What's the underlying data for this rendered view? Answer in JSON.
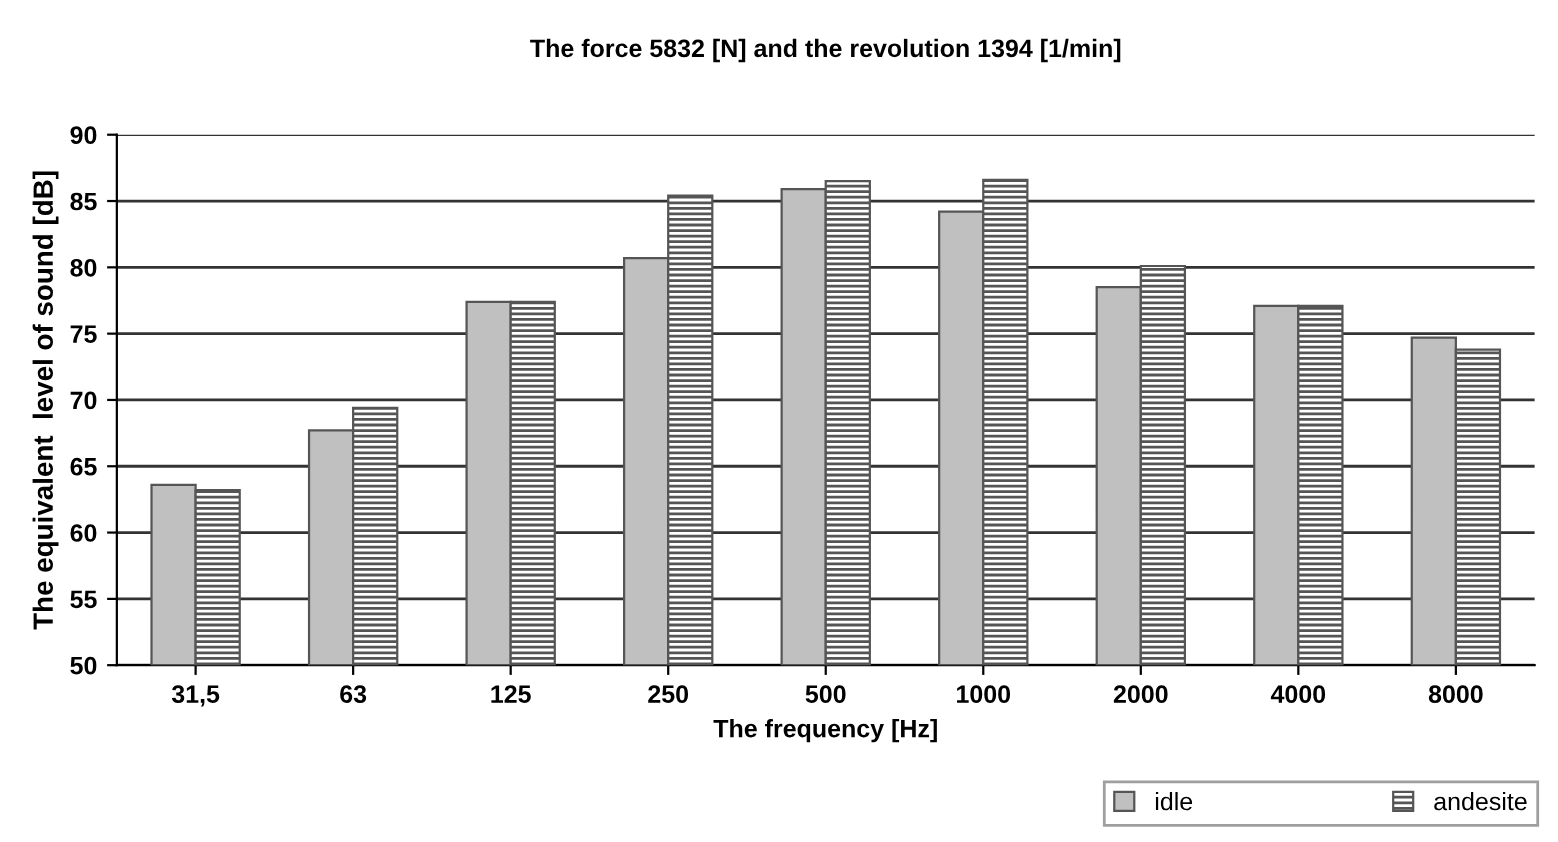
{
  "chart_data": {
    "type": "bar",
    "title": "The force 5832 [N] and the revolution 1394 [1/min]",
    "xlabel": "The frequency [Hz]",
    "ylabel": "The equivalent  level of sound [dB]",
    "categories": [
      "31,5",
      "63",
      "125",
      "250",
      "500",
      "1000",
      "2000",
      "4000",
      "8000"
    ],
    "series": [
      {
        "name": "idle",
        "color": "#c0c0c0",
        "values": [
          63.6,
          67.7,
          77.4,
          80.7,
          85.9,
          84.2,
          78.5,
          77.1,
          74.7
        ]
      },
      {
        "name": "andesite",
        "color": "#555555",
        "values": [
          63.2,
          69.4,
          77.4,
          85.4,
          86.5,
          86.6,
          80.1,
          77.1,
          73.8
        ]
      }
    ],
    "ylim": [
      50,
      90
    ],
    "yticks": [
      50,
      55,
      60,
      65,
      70,
      75,
      80,
      85,
      90
    ],
    "grid": "y",
    "legend": "bottom right"
  }
}
